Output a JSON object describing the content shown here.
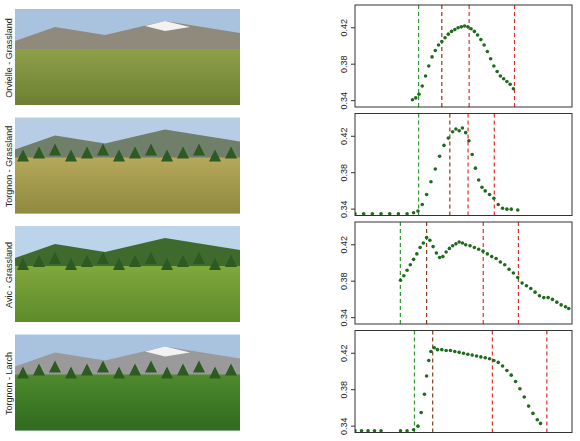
{
  "chart_data": [
    {
      "type": "scatter",
      "title": "Orvielle - Grassland",
      "color": "#1e6b1e",
      "marker": "circle",
      "xlim": [
        0,
        100
      ],
      "ylim": [
        0.333,
        0.445
      ],
      "yticks": [
        0.34,
        0.38,
        0.42
      ],
      "tick_labels": "y",
      "line_style": "dashed",
      "vlines": [
        {
          "x": 29.3,
          "color": "#2e9a2e"
        },
        {
          "x": 40.0,
          "color": "#8b3a1a"
        },
        {
          "x": 52.6,
          "color": "#e0302a"
        },
        {
          "x": 73.5,
          "color": "#e0302a"
        }
      ],
      "x": [
        26.5,
        28,
        29.5,
        31,
        32.5,
        34,
        35.5,
        37,
        38.5,
        40,
        41.5,
        43,
        44.5,
        46,
        47.5,
        49,
        50.5,
        52,
        53.5,
        55,
        56.5,
        58,
        59.5,
        61,
        62.5,
        64,
        65.5,
        67,
        68.5,
        70,
        71.5,
        73
      ],
      "values": [
        0.341,
        0.343,
        0.347,
        0.356,
        0.367,
        0.378,
        0.388,
        0.395,
        0.401,
        0.405,
        0.409,
        0.413,
        0.416,
        0.418,
        0.42,
        0.421,
        0.422,
        0.421,
        0.419,
        0.416,
        0.412,
        0.407,
        0.401,
        0.394,
        0.386,
        0.378,
        0.372,
        0.367,
        0.364,
        0.361,
        0.358,
        0.353
      ]
    },
    {
      "type": "scatter",
      "title": "Torgnon - Grassland",
      "color": "#1e6b1e",
      "marker": "circle",
      "xlim": [
        0,
        100
      ],
      "ylim": [
        0.333,
        0.445
      ],
      "yticks": [
        0.34,
        0.38,
        0.42
      ],
      "tick_labels": "y",
      "line_style": "dashed",
      "vlines": [
        {
          "x": 29.3,
          "color": "#2e9a2e"
        },
        {
          "x": 43.7,
          "color": "#8b3a1a"
        },
        {
          "x": 52.1,
          "color": "#e0302a"
        },
        {
          "x": 64.2,
          "color": "#e0302a"
        }
      ],
      "x": [
        0,
        4,
        8,
        12,
        16,
        20,
        24,
        27,
        29,
        31,
        33,
        35,
        37,
        39,
        41,
        43,
        45,
        46.5,
        48,
        49.5,
        51,
        52.5,
        54,
        55.5,
        57,
        58.5,
        60,
        62,
        64,
        66,
        68,
        70,
        72,
        75
      ],
      "values": [
        0.335,
        0.335,
        0.335,
        0.335,
        0.335,
        0.335,
        0.335,
        0.336,
        0.338,
        0.345,
        0.356,
        0.37,
        0.384,
        0.398,
        0.41,
        0.418,
        0.425,
        0.428,
        0.426,
        0.429,
        0.424,
        0.415,
        0.4,
        0.385,
        0.372,
        0.364,
        0.36,
        0.356,
        0.352,
        0.345,
        0.341,
        0.34,
        0.34,
        0.339
      ]
    },
    {
      "type": "scatter",
      "title": "Avic - Grassland",
      "color": "#1e6b1e",
      "marker": "circle",
      "xlim": [
        0,
        100
      ],
      "ylim": [
        0.333,
        0.445
      ],
      "yticks": [
        0.34,
        0.38,
        0.42
      ],
      "tick_labels": "y",
      "line_style": "dashed",
      "vlines": [
        {
          "x": 20.9,
          "color": "#2e9a2e"
        },
        {
          "x": 33.0,
          "color": "#8b3a1a"
        },
        {
          "x": 59.1,
          "color": "#e0302a"
        },
        {
          "x": 75.3,
          "color": "#e0302a"
        }
      ],
      "x": [
        21,
        22.5,
        24,
        25.5,
        27,
        28.5,
        30,
        31.5,
        33,
        34.5,
        36,
        37.5,
        39,
        40.5,
        42,
        43.5,
        45,
        46.5,
        48,
        49.5,
        51,
        53,
        55,
        57,
        59,
        61,
        63,
        65,
        67,
        69,
        71,
        73,
        75,
        77,
        79,
        81,
        83,
        85,
        87,
        89,
        91,
        93,
        95,
        97,
        98.5
      ],
      "values": [
        0.381,
        0.386,
        0.392,
        0.398,
        0.404,
        0.41,
        0.417,
        0.422,
        0.428,
        0.425,
        0.418,
        0.411,
        0.406,
        0.407,
        0.412,
        0.416,
        0.419,
        0.421,
        0.423,
        0.422,
        0.42,
        0.419,
        0.417,
        0.415,
        0.413,
        0.41,
        0.407,
        0.405,
        0.401,
        0.398,
        0.393,
        0.389,
        0.384,
        0.378,
        0.375,
        0.372,
        0.368,
        0.364,
        0.362,
        0.362,
        0.36,
        0.357,
        0.354,
        0.352,
        0.35
      ]
    },
    {
      "type": "scatter",
      "title": "Torgnon - Larch",
      "color": "#1e6b1e",
      "marker": "circle",
      "xlim": [
        0,
        100
      ],
      "ylim": [
        0.333,
        0.445
      ],
      "yticks": [
        0.34,
        0.38,
        0.42
      ],
      "tick_labels": "y",
      "line_style": "dashed",
      "vlines": [
        {
          "x": 27.4,
          "color": "#2e9a2e"
        },
        {
          "x": 35.8,
          "color": "#8b3a1a"
        },
        {
          "x": 63.3,
          "color": "#e0302a"
        },
        {
          "x": 88.4,
          "color": "#e0302a"
        }
      ],
      "x": [
        0,
        3,
        6,
        9,
        12,
        21,
        24,
        27,
        29,
        30.5,
        32,
        33,
        34,
        35,
        36.5,
        38,
        40,
        42,
        44,
        46,
        48,
        50,
        52,
        54,
        56,
        58,
        60,
        62,
        64,
        66,
        68,
        70,
        72,
        74,
        76,
        78,
        80,
        82,
        84,
        85.5
      ],
      "values": [
        0.335,
        0.335,
        0.335,
        0.335,
        0.335,
        0.335,
        0.335,
        0.336,
        0.34,
        0.355,
        0.375,
        0.395,
        0.412,
        0.422,
        0.426,
        0.424,
        0.424,
        0.423,
        0.423,
        0.422,
        0.421,
        0.42,
        0.419,
        0.418,
        0.417,
        0.416,
        0.415,
        0.414,
        0.412,
        0.41,
        0.406,
        0.401,
        0.396,
        0.389,
        0.381,
        0.372,
        0.362,
        0.354,
        0.347,
        0.343
      ]
    }
  ]
}
